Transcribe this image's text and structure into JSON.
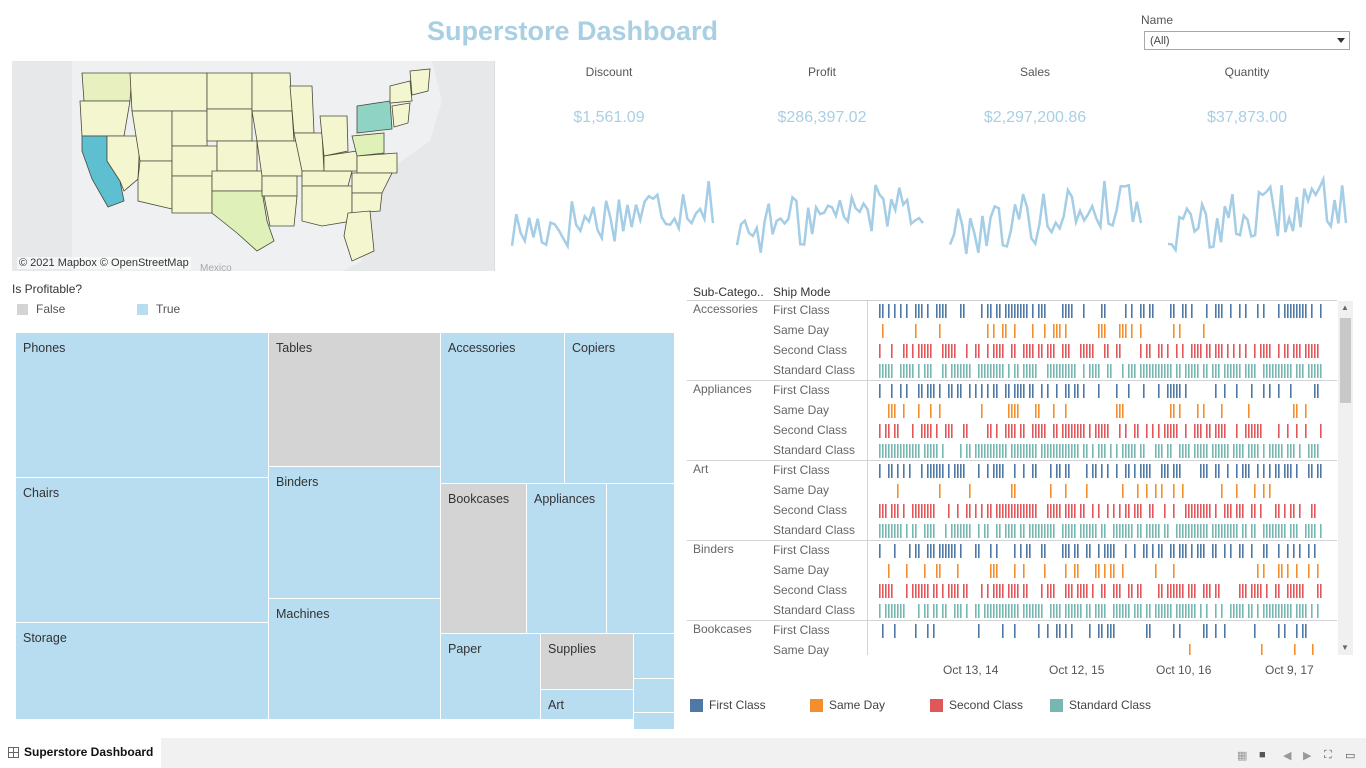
{
  "dashboard": {
    "title": "Superstore Dashboard"
  },
  "filter": {
    "label": "Name",
    "value": "(All)"
  },
  "map": {
    "credit": "© 2021 Mapbox © OpenStreetMap",
    "country_label": "Mexico",
    "highlight_color": "#5ebfd0",
    "base_color": "#f3f6cf"
  },
  "kpis": [
    {
      "label": "Discount",
      "value": "$1,561.09"
    },
    {
      "label": "Profit",
      "value": "$286,397.02"
    },
    {
      "label": "Sales",
      "value": "$2,297,200.86"
    },
    {
      "label": "Quantity",
      "value": "$37,873.00"
    }
  ],
  "sparkline_color": "#a4cde6",
  "profit_legend": {
    "title": "Is Profitable?",
    "items": [
      {
        "label": "False",
        "color": "#d4d4d4"
      },
      {
        "label": "True",
        "color": "#b8dcf0"
      }
    ]
  },
  "treemap": {
    "tiles": [
      {
        "label": "Phones",
        "profitable": true
      },
      {
        "label": "Chairs",
        "profitable": true
      },
      {
        "label": "Storage",
        "profitable": true
      },
      {
        "label": "Tables",
        "profitable": false
      },
      {
        "label": "Binders",
        "profitable": true
      },
      {
        "label": "Machines",
        "profitable": true
      },
      {
        "label": "Accessories",
        "profitable": true
      },
      {
        "label": "Copiers",
        "profitable": true
      },
      {
        "label": "Bookcases",
        "profitable": false
      },
      {
        "label": "Appliances",
        "profitable": true
      },
      {
        "label": "Paper",
        "profitable": true
      },
      {
        "label": "Supplies",
        "profitable": false
      },
      {
        "label": "Art",
        "profitable": true
      }
    ]
  },
  "gantt": {
    "headers": {
      "subcategory": "Sub-Catego..",
      "ship_mode": "Ship Mode"
    },
    "categories": [
      "Accessories",
      "Appliances",
      "Art",
      "Binders",
      "Bookcases"
    ],
    "ship_modes": [
      "First Class",
      "Same Day",
      "Second Class",
      "Standard Class"
    ],
    "axis_ticks": [
      "Oct 13, 14",
      "Oct 12, 15",
      "Oct 10, 16",
      "Oct 9, 17"
    ]
  },
  "ship_legend": [
    {
      "label": "First Class",
      "color": "#4e79a7"
    },
    {
      "label": "Same Day",
      "color": "#f28e2b"
    },
    {
      "label": "Second Class",
      "color": "#e15759"
    },
    {
      "label": "Standard Class",
      "color": "#76b7b2"
    }
  ],
  "footer": {
    "tab_label": "Superstore Dashboard"
  }
}
